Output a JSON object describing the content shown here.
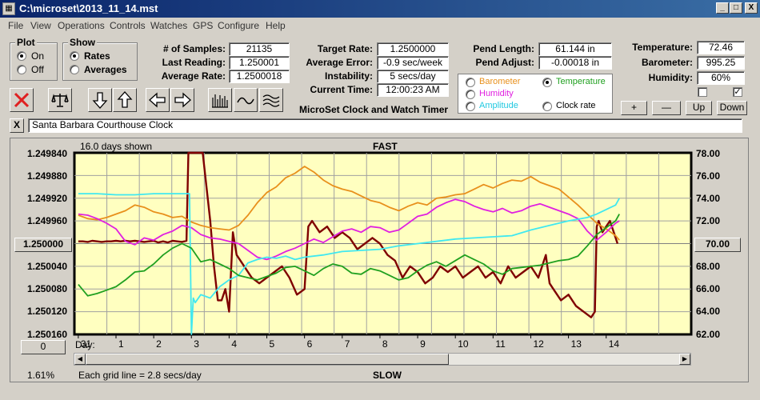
{
  "window": {
    "title": "C:\\microset\\2013_11_14.mst",
    "app_icon": "microset-app-icon",
    "minimize": "_",
    "maximize": "□",
    "close": "X"
  },
  "menu": [
    "File",
    "View",
    "Operations",
    "Controls",
    "Watches",
    "GPS",
    "Configure",
    "Help"
  ],
  "plot_group": {
    "title": "Plot",
    "on": "On",
    "off": "Off",
    "selected": "On"
  },
  "show_group": {
    "title": "Show",
    "rates": "Rates",
    "averages": "Averages",
    "selected": "Rates"
  },
  "stats": {
    "samples_label": "# of Samples:",
    "samples": "21135",
    "last_label": "Last Reading:",
    "last": "1.250001",
    "avg_rate_label": "Average Rate:",
    "avg_rate": "1.2500018",
    "target_label": "Target Rate:",
    "target": "1.2500000",
    "avg_err_label": "Average Error:",
    "avg_err": "-0.9 sec/week",
    "instab_label": "Instability:",
    "instab": "5 secs/day",
    "time_label": "Current Time:",
    "time": "12:00:23 AM",
    "pend_len_label": "Pend Length:",
    "pend_len": "61.144 in",
    "pend_adj_label": "Pend Adjust:",
    "pend_adj": "-0.00018 in",
    "temp_label": "Temperature:",
    "temp": "72.46",
    "baro_label": "Barometer:",
    "baro": "995.25",
    "hum_label": "Humidity:",
    "hum": "60%"
  },
  "app_caption": "MicroSet Clock and Watch Timer",
  "series_select": {
    "barometer": "Barometer",
    "temperature": "Temperature",
    "humidity": "Humidity",
    "amplitude": "Amplitude",
    "clock_rate": "Clock rate",
    "selected": "Temperature"
  },
  "scale_buttons": {
    "plus": "+",
    "minus": "—",
    "up": "Up",
    "down": "Down"
  },
  "toolbar_icons": [
    "clear-icon",
    "balance-icon",
    "arrow-down-icon",
    "arrow-up-icon",
    "arrow-left-icon",
    "arrow-right-icon",
    "bars-icon",
    "wave-icon",
    "multiwave-icon"
  ],
  "clock_name": "Santa Barbara Courthouse Clock",
  "clock_close": "X",
  "graph": {
    "days_shown": "16.0 days shown",
    "fast": "FAST",
    "slow": "SLOW",
    "grid_note": "Each grid line = 2.8 secs/day",
    "center_rate": "1.250000",
    "center_temp": "70.00",
    "left_pct": "1.61%",
    "offset_button": "0",
    "day_label": "Day:"
  },
  "chart_data": {
    "type": "line",
    "title": "",
    "xlabel": "Day",
    "ylabel": "",
    "x_ticks": [
      "31",
      "1",
      "2",
      "3",
      "4",
      "5",
      "6",
      "7",
      "8",
      "9",
      "10",
      "11",
      "12",
      "13",
      "14"
    ],
    "ylim": [
      1.24984,
      1.25016
    ],
    "y_ticks": [
      "1.249840",
      "1.249880",
      "1.249920",
      "1.249960",
      "1.250000",
      "1.250040",
      "1.250080",
      "1.250120",
      "1.250160"
    ],
    "y2lim": [
      62,
      78
    ],
    "y2_ticks": [
      "78.00",
      "76.00",
      "74.00",
      "72.00",
      "70.00",
      "68.00",
      "66.00",
      "64.00",
      "62.00"
    ],
    "grid": true,
    "series": [
      {
        "color": "#7f0000",
        "x": [
          0,
          0.12,
          0.25,
          0.37,
          0.5,
          0.62,
          0.75,
          0.87,
          1.0,
          1.12,
          1.25,
          1.37,
          1.5,
          1.62,
          1.75,
          1.87,
          2.0,
          2.12,
          2.25,
          2.37,
          2.5,
          2.62,
          2.75,
          2.87,
          2.92,
          2.95,
          3.0,
          3.1,
          3.2,
          3.3,
          3.4,
          3.5,
          3.6,
          3.7,
          3.8,
          3.9,
          4.0,
          4.1,
          4.2,
          4.4,
          4.6,
          4.8,
          5.0,
          5.2,
          5.4,
          5.6,
          5.8,
          6.0,
          6.1,
          6.2,
          6.4,
          6.6,
          6.8,
          7.0,
          7.2,
          7.4,
          7.6,
          7.8,
          8.0,
          8.2,
          8.4,
          8.6,
          8.8,
          9.0,
          9.2,
          9.4,
          9.6,
          9.8,
          10.0,
          10.2,
          10.4,
          10.6,
          10.8,
          11.0,
          11.2,
          11.4,
          11.6,
          11.8,
          12.0,
          12.2,
          12.4,
          12.5,
          12.6,
          12.8,
          13.0,
          13.2,
          13.4,
          13.6,
          13.7,
          13.75,
          13.8,
          13.9,
          14.0,
          14.1,
          14.2,
          14.3
        ],
        "y": [
          1.249996,
          1.249996,
          1.249997,
          1.249995,
          1.249996,
          1.249997,
          1.249996,
          1.249996,
          1.249995,
          1.249996,
          1.249995,
          1.249996,
          1.249995,
          1.249996,
          1.249997,
          1.249996,
          1.249995,
          1.249998,
          1.249996,
          1.249998,
          1.249995,
          1.249996,
          1.249997,
          1.249995,
          1.24984,
          1.24984,
          1.24984,
          1.24984,
          1.24984,
          1.24984,
          1.2499,
          1.24996,
          1.25004,
          1.2501,
          1.2501,
          1.25008,
          1.25012,
          1.24998,
          1.25002,
          1.25004,
          1.25006,
          1.25007,
          1.25006,
          1.25005,
          1.25004,
          1.25006,
          1.25009,
          1.25008,
          1.24997,
          1.24996,
          1.24998,
          1.24997,
          1.24999,
          1.24998,
          1.24999,
          1.25001,
          1.25,
          1.24999,
          1.25,
          1.25002,
          1.25003,
          1.25006,
          1.25004,
          1.25005,
          1.25007,
          1.25006,
          1.25004,
          1.25005,
          1.25004,
          1.25006,
          1.25005,
          1.25004,
          1.25006,
          1.25005,
          1.25007,
          1.25004,
          1.25006,
          1.25005,
          1.25004,
          1.25006,
          1.25002,
          1.25007,
          1.25008,
          1.2501,
          1.25009,
          1.25011,
          1.25012,
          1.25013,
          1.25012,
          1.24997,
          1.24996,
          1.24998,
          1.24997,
          1.24996,
          1.24998,
          1.25
        ]
      },
      {
        "color": "#e8901c",
        "x": [
          0,
          0.25,
          0.5,
          0.75,
          1.0,
          1.25,
          1.5,
          1.75,
          2.0,
          2.25,
          2.5,
          2.75,
          3.0,
          3.25,
          3.5,
          3.75,
          4.0,
          4.25,
          4.5,
          4.75,
          5.0,
          5.25,
          5.5,
          5.75,
          6.0,
          6.25,
          6.5,
          6.75,
          7.0,
          7.25,
          7.5,
          7.75,
          8.0,
          8.25,
          8.5,
          8.75,
          9.0,
          9.25,
          9.5,
          9.75,
          10.0,
          10.25,
          10.5,
          10.75,
          11.0,
          11.25,
          11.5,
          11.75,
          12.0,
          12.25,
          12.5,
          12.75,
          13.0,
          13.25,
          13.5,
          13.75,
          14.0,
          14.25,
          14.35
        ],
        "y": [
          72.5,
          72.2,
          72.1,
          72.3,
          72.6,
          72.9,
          73.4,
          73.2,
          72.8,
          72.6,
          72.3,
          72.4,
          71.9,
          71.6,
          71.4,
          71.3,
          71.2,
          71.6,
          72.5,
          73.6,
          74.5,
          75.0,
          75.8,
          76.2,
          76.8,
          76.3,
          75.6,
          75.1,
          74.8,
          74.6,
          74.2,
          73.8,
          73.6,
          73.2,
          72.9,
          73.3,
          73.6,
          73.4,
          74.0,
          74.1,
          74.3,
          74.4,
          74.8,
          75.2,
          74.9,
          75.3,
          75.6,
          75.5,
          75.9,
          75.4,
          75.1,
          74.8,
          74.1,
          73.4,
          72.6,
          71.8,
          71.3,
          70.7,
          70.3
        ]
      },
      {
        "color": "#e020e0",
        "x": [
          0,
          0.25,
          0.5,
          0.75,
          1.0,
          1.25,
          1.5,
          1.75,
          2.0,
          2.25,
          2.5,
          2.75,
          3.0,
          3.25,
          3.5,
          3.75,
          4.0,
          4.25,
          4.5,
          4.75,
          5.0,
          5.25,
          5.5,
          5.75,
          6.0,
          6.25,
          6.5,
          6.75,
          7.0,
          7.25,
          7.5,
          7.75,
          8.0,
          8.25,
          8.5,
          8.75,
          9.0,
          9.25,
          9.5,
          9.75,
          10.0,
          10.25,
          10.5,
          10.75,
          11.0,
          11.25,
          11.5,
          11.75,
          12.0,
          12.25,
          12.5,
          12.75,
          13.0,
          13.25,
          13.5,
          13.75,
          14.0,
          14.25,
          14.35
        ],
        "y": [
          72.6,
          72.5,
          72.2,
          71.8,
          71.3,
          70.2,
          69.9,
          70.5,
          70.3,
          70.8,
          71.1,
          71.6,
          71.4,
          70.8,
          70.5,
          70.4,
          70.2,
          70.0,
          69.4,
          68.8,
          68.6,
          68.9,
          69.3,
          69.6,
          70.0,
          70.4,
          70.1,
          70.6,
          71.1,
          71.3,
          71.0,
          71.5,
          71.4,
          71.0,
          71.2,
          71.8,
          72.4,
          72.6,
          73.2,
          73.6,
          73.9,
          73.7,
          73.3,
          73.0,
          72.8,
          73.1,
          72.7,
          72.9,
          73.3,
          73.5,
          73.2,
          72.9,
          72.6,
          72.2,
          71.1,
          70.3,
          71.0,
          71.8,
          72.0
        ]
      },
      {
        "color": "#40e8f0",
        "x": [
          0,
          0.5,
          1.0,
          1.5,
          2.0,
          2.5,
          2.9,
          2.95,
          3.0,
          3.05,
          3.1,
          3.25,
          3.5,
          3.75,
          4.0,
          4.25,
          4.5,
          4.75,
          5.0,
          5.25,
          5.5,
          5.75,
          6.0,
          6.5,
          7.0,
          7.5,
          8.0,
          8.5,
          9.0,
          9.5,
          10.0,
          10.5,
          11.0,
          11.5,
          12.0,
          12.5,
          13.0,
          13.5,
          13.75,
          14.0,
          14.25,
          14.35
        ],
        "y": [
          74.4,
          74.4,
          74.3,
          74.3,
          74.4,
          74.4,
          74.4,
          74.4,
          62.0,
          65.2,
          64.8,
          65.5,
          65.2,
          66.2,
          66.8,
          67.2,
          68.3,
          68.6,
          68.8,
          68.7,
          68.9,
          68.6,
          68.8,
          69.0,
          69.3,
          69.4,
          69.5,
          69.8,
          70.0,
          70.2,
          70.4,
          70.5,
          70.6,
          70.7,
          71.2,
          71.6,
          72.0,
          72.3,
          72.6,
          73.0,
          73.4,
          74.0
        ]
      },
      {
        "color": "#20a020",
        "x": [
          0,
          0.25,
          0.5,
          0.75,
          1.0,
          1.25,
          1.5,
          1.75,
          2.0,
          2.25,
          2.5,
          2.75,
          3.0,
          3.25,
          3.5,
          3.75,
          4.0,
          4.25,
          4.5,
          4.75,
          5.0,
          5.25,
          5.5,
          5.75,
          6.0,
          6.25,
          6.5,
          6.75,
          7.0,
          7.25,
          7.5,
          7.75,
          8.0,
          8.25,
          8.5,
          8.75,
          9.0,
          9.25,
          9.5,
          9.75,
          10.0,
          10.25,
          10.5,
          10.75,
          11.0,
          11.25,
          11.5,
          11.75,
          12.0,
          12.25,
          12.5,
          12.75,
          13.0,
          13.25,
          13.5,
          13.75,
          14.0,
          14.25,
          14.35
        ],
        "y": [
          66.4,
          65.4,
          65.6,
          65.9,
          66.2,
          66.8,
          67.5,
          67.6,
          68.2,
          69.0,
          69.6,
          70.0,
          69.6,
          68.4,
          68.6,
          68.2,
          67.8,
          67.2,
          67.0,
          66.8,
          67.1,
          67.4,
          67.9,
          68.0,
          67.6,
          67.2,
          67.8,
          68.2,
          68.0,
          67.4,
          67.3,
          67.8,
          67.6,
          67.2,
          66.8,
          67.0,
          67.6,
          68.1,
          68.4,
          68.0,
          68.5,
          69.0,
          68.6,
          68.2,
          67.6,
          67.3,
          67.8,
          67.9,
          68.0,
          68.1,
          68.3,
          68.5,
          68.6,
          68.9,
          69.8,
          70.8,
          71.4,
          72.0,
          72.6
        ]
      }
    ]
  }
}
